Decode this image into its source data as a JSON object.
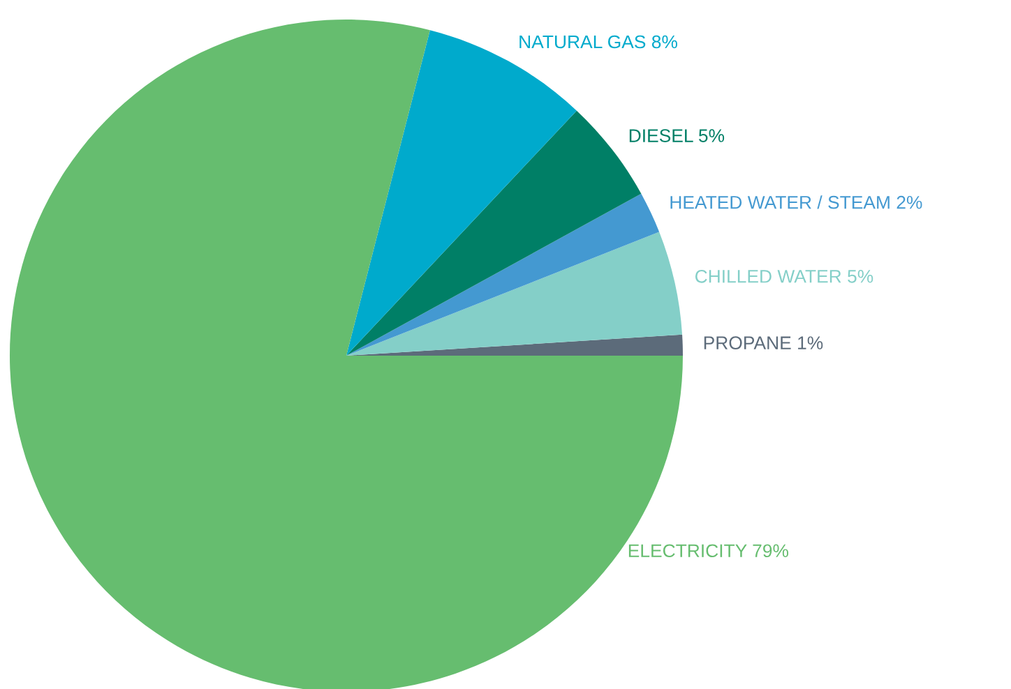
{
  "chart_data": {
    "type": "pie",
    "categories": [
      "PROPANE",
      "CHILLED WATER",
      "HEATED WATER / STEAM",
      "DIESEL",
      "NATURAL GAS",
      "ELECTRICITY"
    ],
    "values": [
      1,
      5,
      2,
      5,
      8,
      79
    ],
    "value_labels": [
      "1%",
      "5%",
      "2%",
      "5%",
      "8%",
      "79%"
    ],
    "colors": [
      "#5c6b7a",
      "#84cfc8",
      "#4499d1",
      "#007f66",
      "#00aacc",
      "#66bd6f"
    ]
  }
}
